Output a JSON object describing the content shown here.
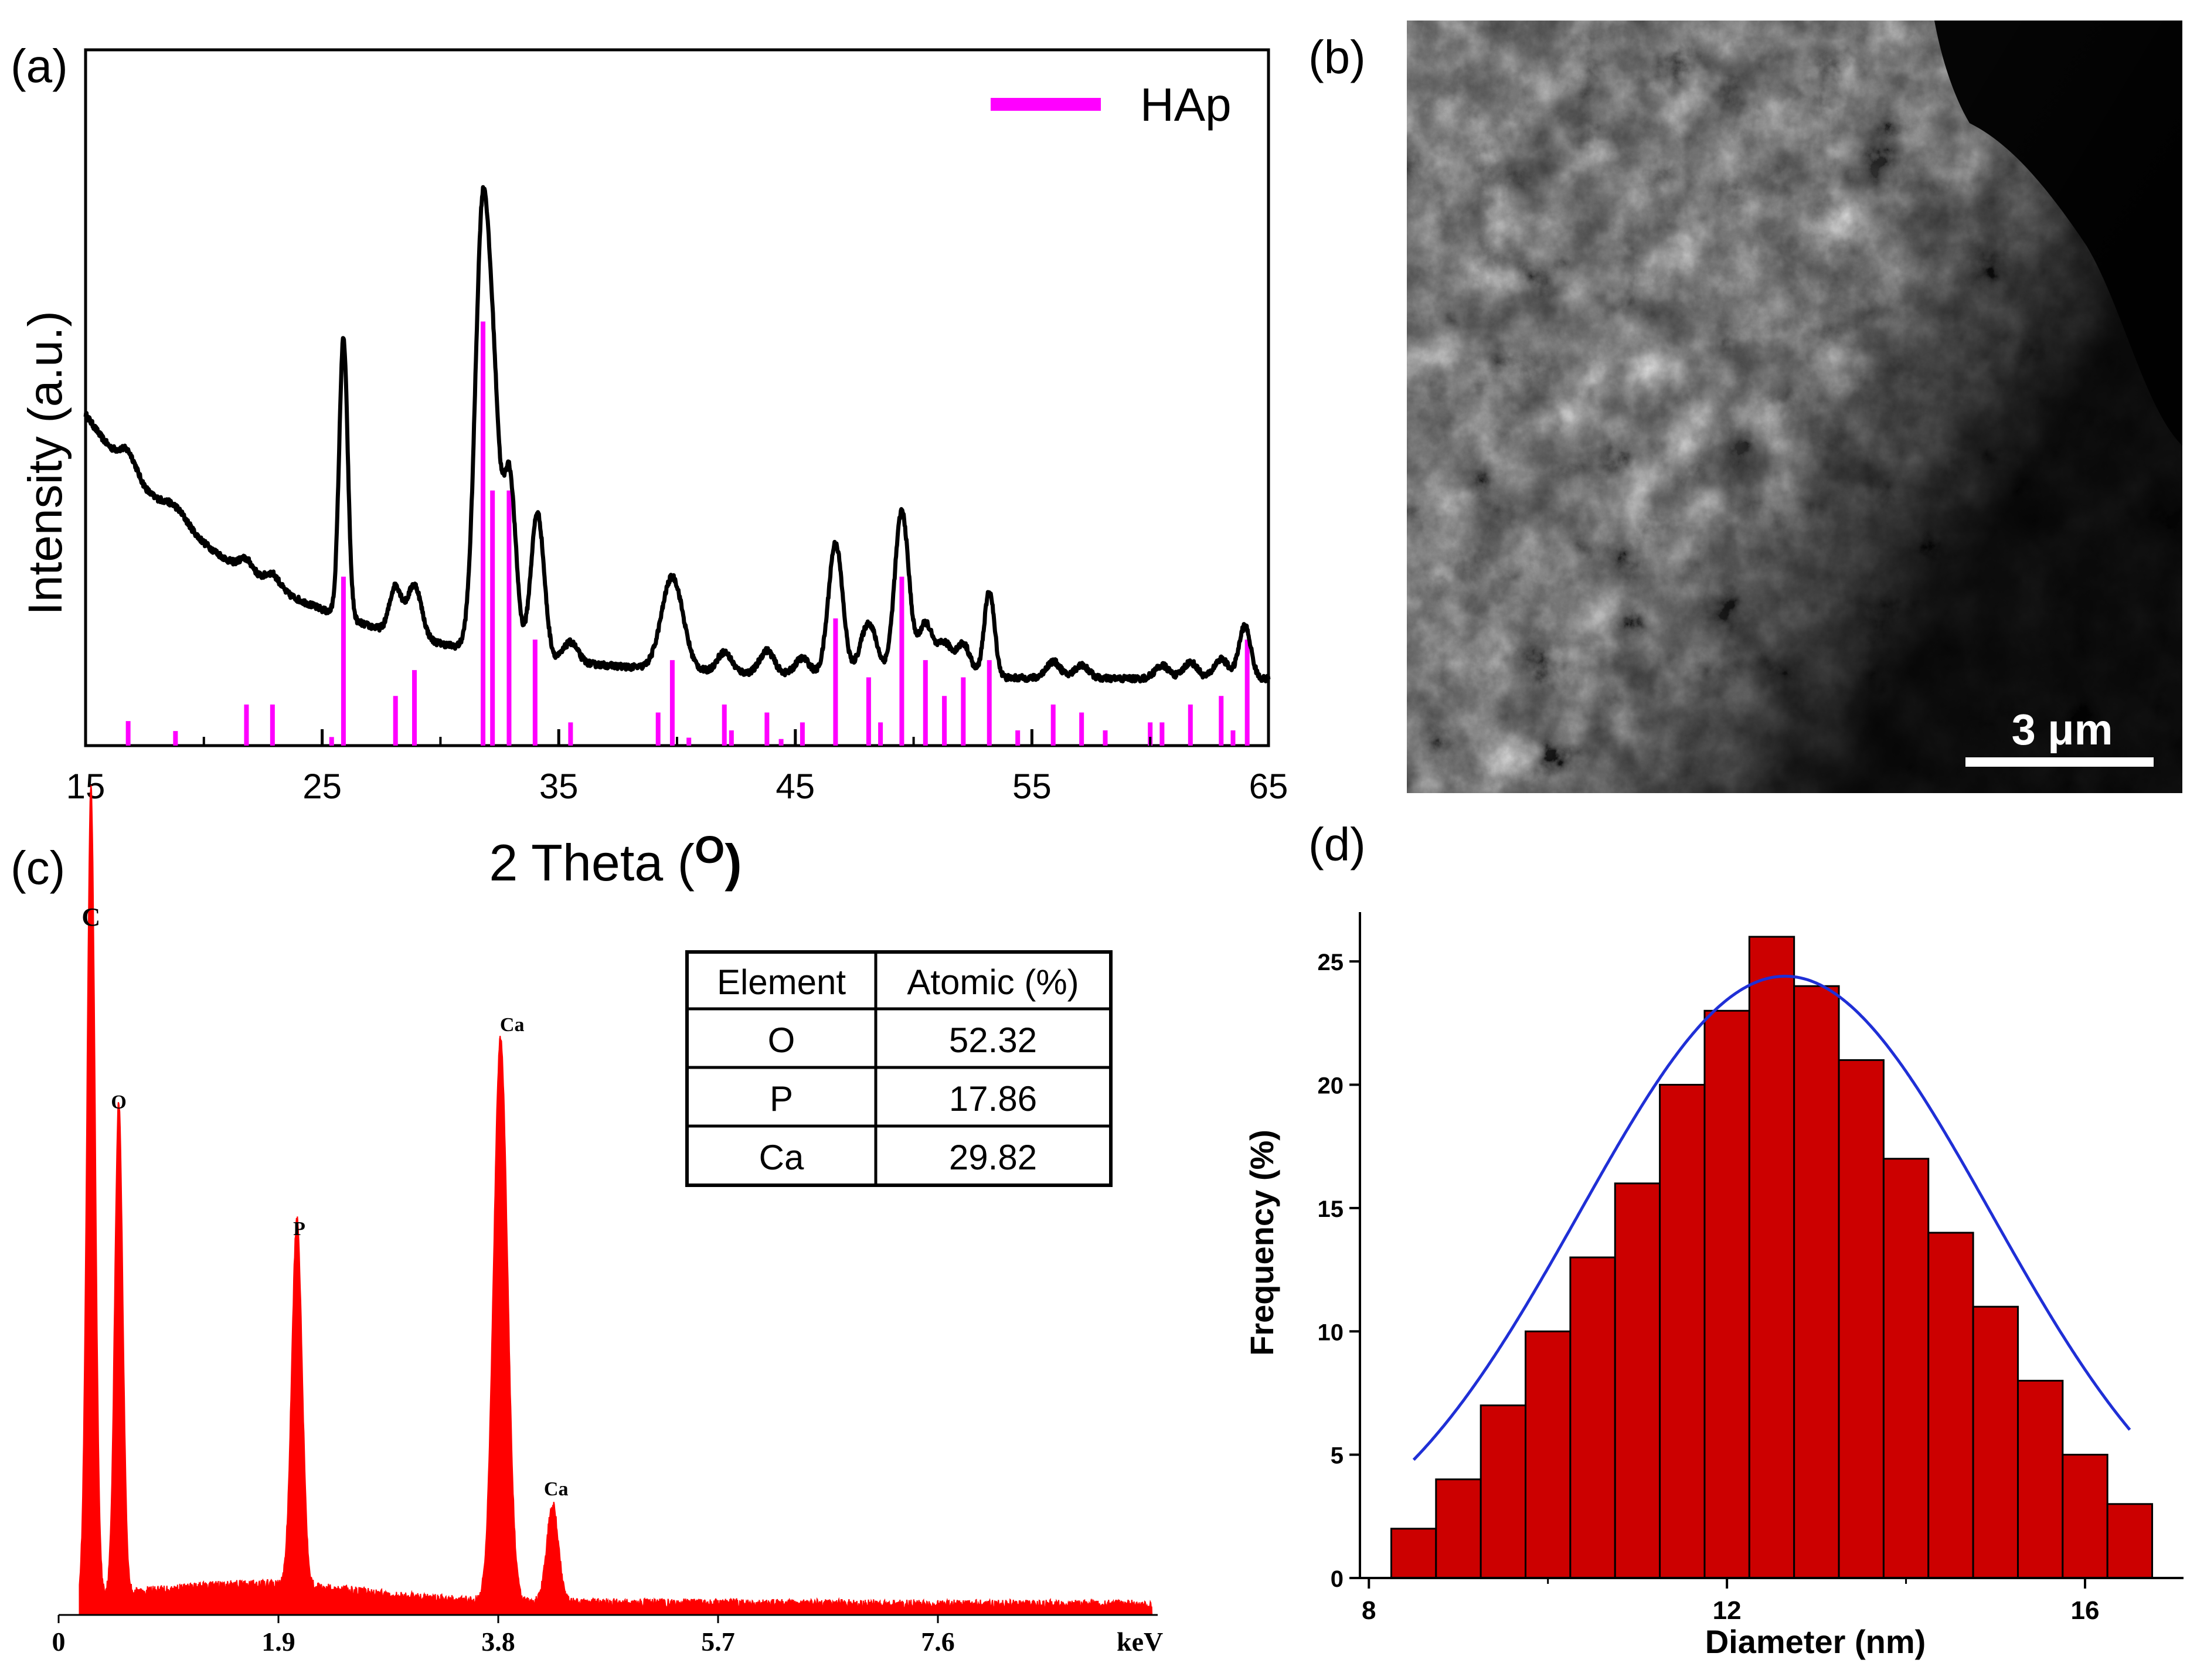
{
  "colors": {
    "xrd_line": "#000000",
    "hap_ref": "#ff00ff",
    "eds": "#ff0000",
    "hist_fill": "#cc0000",
    "fit": "#1f2fd6",
    "sem_scale": "#ffffff"
  },
  "chart_data": [
    {
      "panel_label": "(a)",
      "type": "line",
      "xlabel": "2 Theta (",
      "xlabel_unit": "O",
      "xlabel_close": ")",
      "ylabel": "Intensity (a.u.)",
      "xlim": [
        15,
        65
      ],
      "ylim": [
        0,
        105
      ],
      "x_ticks": [
        "15",
        "25",
        "35",
        "45",
        "55",
        "65"
      ],
      "legend": "HAp",
      "legend_position": "top-right",
      "peaks": [
        {
          "x": 16.8,
          "h": 3.0,
          "w": 0.35
        },
        {
          "x": 18.8,
          "h": 2.0,
          "w": 0.5
        },
        {
          "x": 21.8,
          "h": 2.0,
          "w": 0.3
        },
        {
          "x": 22.9,
          "h": 2.0,
          "w": 0.3
        },
        {
          "x": 25.9,
          "h": 42.0,
          "w": 0.18
        },
        {
          "x": 28.1,
          "h": 7.0,
          "w": 0.25
        },
        {
          "x": 28.9,
          "h": 8.0,
          "w": 0.3
        },
        {
          "x": 31.8,
          "h": 68.0,
          "w": 0.32
        },
        {
          "x": 32.3,
          "h": 22.0,
          "w": 0.22
        },
        {
          "x": 32.9,
          "h": 28.0,
          "w": 0.28
        },
        {
          "x": 34.1,
          "h": 22.0,
          "w": 0.28
        },
        {
          "x": 35.5,
          "h": 3.0,
          "w": 0.3
        },
        {
          "x": 39.8,
          "h": 14.0,
          "w": 0.45
        },
        {
          "x": 42.0,
          "h": 3.0,
          "w": 0.3
        },
        {
          "x": 43.8,
          "h": 3.5,
          "w": 0.3
        },
        {
          "x": 45.3,
          "h": 2.5,
          "w": 0.3
        },
        {
          "x": 46.7,
          "h": 20.0,
          "w": 0.3
        },
        {
          "x": 48.1,
          "h": 8.0,
          "w": 0.35
        },
        {
          "x": 49.5,
          "h": 25.0,
          "w": 0.3
        },
        {
          "x": 50.5,
          "h": 8.0,
          "w": 0.3
        },
        {
          "x": 51.3,
          "h": 5.0,
          "w": 0.3
        },
        {
          "x": 52.1,
          "h": 5.0,
          "w": 0.3
        },
        {
          "x": 53.2,
          "h": 13.0,
          "w": 0.22
        },
        {
          "x": 55.9,
          "h": 2.5,
          "w": 0.3
        },
        {
          "x": 57.1,
          "h": 2.0,
          "w": 0.3
        },
        {
          "x": 60.5,
          "h": 2.0,
          "w": 0.3
        },
        {
          "x": 61.7,
          "h": 2.5,
          "w": 0.3
        },
        {
          "x": 63.0,
          "h": 3.0,
          "w": 0.3
        },
        {
          "x": 64.0,
          "h": 8.0,
          "w": 0.25
        }
      ],
      "hap_reference": [
        {
          "x": 16.8,
          "h": 3.7
        },
        {
          "x": 18.8,
          "h": 2.2
        },
        {
          "x": 21.8,
          "h": 6.2
        },
        {
          "x": 22.9,
          "h": 6.2
        },
        {
          "x": 25.4,
          "h": 1.3
        },
        {
          "x": 25.9,
          "h": 25.5
        },
        {
          "x": 28.1,
          "h": 7.5
        },
        {
          "x": 28.9,
          "h": 11.4
        },
        {
          "x": 31.8,
          "h": 64.0
        },
        {
          "x": 32.2,
          "h": 38.5
        },
        {
          "x": 32.9,
          "h": 38.5
        },
        {
          "x": 34.0,
          "h": 16.0
        },
        {
          "x": 35.5,
          "h": 3.5
        },
        {
          "x": 39.2,
          "h": 5.0
        },
        {
          "x": 39.8,
          "h": 12.9
        },
        {
          "x": 40.5,
          "h": 1.2
        },
        {
          "x": 42.0,
          "h": 6.2
        },
        {
          "x": 42.3,
          "h": 2.3
        },
        {
          "x": 43.8,
          "h": 5.0
        },
        {
          "x": 44.4,
          "h": 1.0
        },
        {
          "x": 45.3,
          "h": 3.5
        },
        {
          "x": 46.7,
          "h": 19.2
        },
        {
          "x": 48.1,
          "h": 10.3
        },
        {
          "x": 48.6,
          "h": 3.5
        },
        {
          "x": 49.5,
          "h": 25.5
        },
        {
          "x": 50.5,
          "h": 12.9
        },
        {
          "x": 51.3,
          "h": 7.5
        },
        {
          "x": 52.1,
          "h": 10.3
        },
        {
          "x": 53.2,
          "h": 12.9
        },
        {
          "x": 54.4,
          "h": 2.3
        },
        {
          "x": 55.9,
          "h": 6.2
        },
        {
          "x": 57.1,
          "h": 5.0
        },
        {
          "x": 58.1,
          "h": 2.3
        },
        {
          "x": 60.0,
          "h": 3.5
        },
        {
          "x": 60.5,
          "h": 3.5
        },
        {
          "x": 61.7,
          "h": 6.2
        },
        {
          "x": 63.0,
          "h": 7.5
        },
        {
          "x": 63.5,
          "h": 2.3
        },
        {
          "x": 64.1,
          "h": 16.0
        }
      ]
    },
    {
      "panel_label": "(c)",
      "type": "line",
      "xlabel": "keV",
      "xlim": [
        0,
        9.5
      ],
      "ylim": [
        0,
        100
      ],
      "x_ticks": [
        "0",
        "1.9",
        "3.8",
        "5.7",
        "7.6"
      ],
      "peak_labels": [
        {
          "text": "C",
          "x": 0.28,
          "y": 98
        },
        {
          "text": "O",
          "x": 0.52,
          "y": 72
        },
        {
          "text": "P",
          "x": 2.08,
          "y": 54
        },
        {
          "text": "Ca",
          "x": 3.92,
          "y": 83
        },
        {
          "text": "Ca",
          "x": 4.3,
          "y": 17
        }
      ],
      "peaks": [
        {
          "x": 0.28,
          "h": 115,
          "w": 0.035
        },
        {
          "x": 0.52,
          "h": 70,
          "w": 0.035
        },
        {
          "x": 2.06,
          "h": 52,
          "w": 0.045
        },
        {
          "x": 3.82,
          "h": 80,
          "w": 0.06
        },
        {
          "x": 4.27,
          "h": 14,
          "w": 0.05
        }
      ],
      "table": {
        "headers": [
          "Element",
          "Atomic (%)"
        ],
        "rows": [
          [
            "O",
            "52.32"
          ],
          [
            "P",
            "17.86"
          ],
          [
            "Ca",
            "29.82"
          ]
        ]
      }
    },
    {
      "panel_label": "(d)",
      "type": "bar",
      "xlabel": "Diameter (nm)",
      "ylabel": "Frequency (%)",
      "xlim": [
        7.9,
        17.1
      ],
      "ylim": [
        0,
        27
      ],
      "x_ticks": [
        "8",
        "12",
        "16"
      ],
      "y_ticks": [
        "0",
        "5",
        "10",
        "15",
        "20",
        "25"
      ],
      "bin_centers": [
        8.5,
        9.0,
        9.5,
        10.0,
        10.5,
        11.0,
        11.5,
        12.0,
        12.5,
        13.0,
        13.5,
        14.0,
        14.5,
        15.0,
        15.5,
        16.0,
        16.5
      ],
      "values": [
        2,
        4,
        7,
        10,
        13,
        16,
        20,
        23,
        26,
        24,
        21,
        17,
        14,
        11,
        8,
        5,
        3
      ],
      "fit": {
        "type": "gaussian",
        "mean": 12.65,
        "sigma": 2.3,
        "amplitude": 24.4,
        "x_range": [
          8.5,
          16.5
        ]
      }
    }
  ],
  "sem": {
    "panel_label": "(b)",
    "scale_bar": "3 μm"
  }
}
